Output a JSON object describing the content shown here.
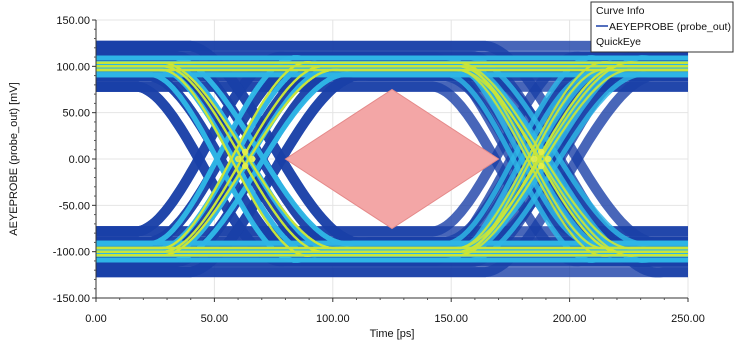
{
  "chart_data": {
    "type": "eye-diagram",
    "xlabel": "Time [ps]",
    "ylabel": "AEYEPROBE (probe_out) [mV]",
    "xlim": [
      0,
      250
    ],
    "ylim": [
      -150,
      150
    ],
    "x_ticks": [
      {
        "value": 0,
        "label": "0.00"
      },
      {
        "value": 50,
        "label": "50.00"
      },
      {
        "value": 100,
        "label": "100.00"
      },
      {
        "value": 150,
        "label": "150.00"
      },
      {
        "value": 200,
        "label": "200.00"
      },
      {
        "value": 250,
        "label": "250.00"
      }
    ],
    "y_ticks": [
      {
        "value": 150,
        "label": "150.00"
      },
      {
        "value": 100,
        "label": "100.00"
      },
      {
        "value": 50,
        "label": "50.00"
      },
      {
        "value": 0,
        "label": "0.00"
      },
      {
        "value": -50,
        "label": "-50.00"
      },
      {
        "value": -100,
        "label": "-100.00"
      },
      {
        "value": -150,
        "label": "-150.00"
      }
    ],
    "grid": true,
    "legend": {
      "title": "Curve Info",
      "position": "top-right",
      "entries": [
        {
          "label": "AEYEPROBE (probe_out)",
          "color": "#1a3fa8"
        },
        {
          "label": "QuickEye",
          "color": null
        }
      ]
    },
    "signal": {
      "unit_interval_ps": 125,
      "high_mv": 100,
      "low_mv": -100,
      "crossings_ps": [
        63,
        188
      ],
      "transition_points_ps": [
        0,
        125,
        250
      ]
    },
    "eye_mask": {
      "color": "#f3a6a6",
      "points": [
        [
          80,
          0
        ],
        [
          125,
          75
        ],
        [
          170,
          0
        ],
        [
          125,
          -75
        ]
      ]
    },
    "colors": {
      "density_low": "#1a3fa8",
      "density_mid": "#2fb6e6",
      "density_high": "#c9e63a"
    }
  }
}
